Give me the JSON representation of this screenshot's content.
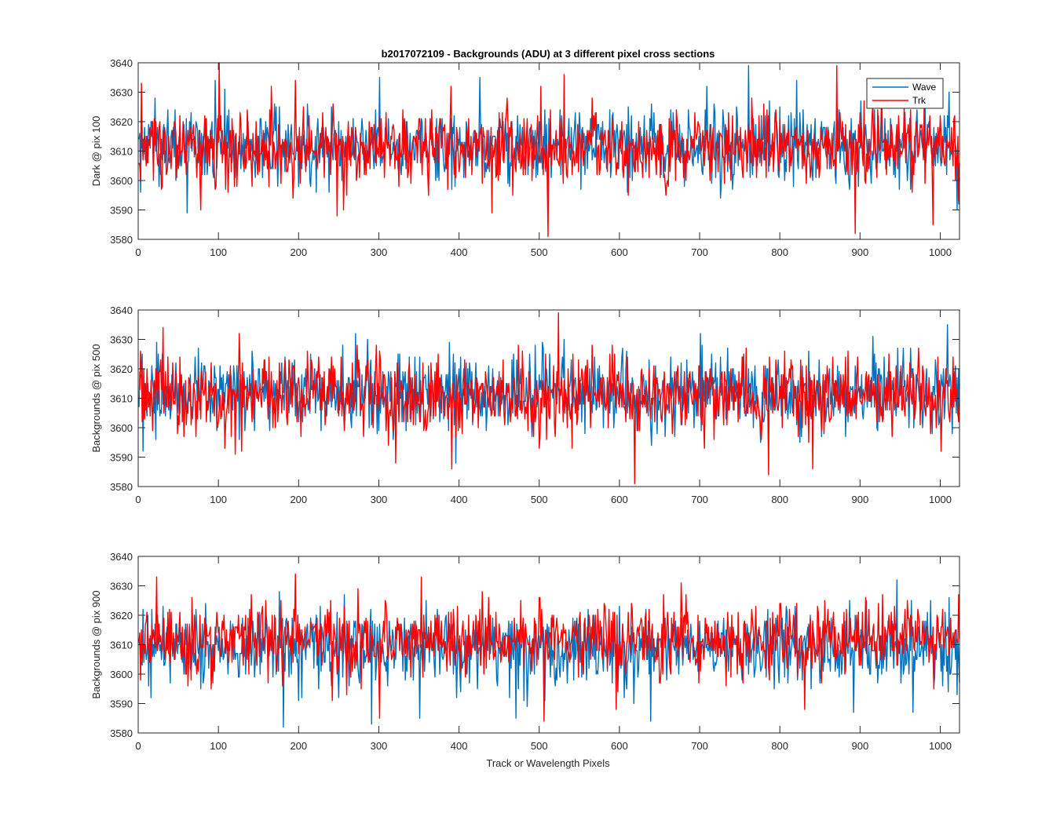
{
  "figure": {
    "title": "b2017072109 - Backgrounds (ADU) at 3 different pixel cross sections",
    "xlabel": "Track or Wavelength Pixels"
  },
  "legend": {
    "position": "top-right of first panel",
    "entries": [
      {
        "name": "Wave",
        "color": "#0072BD"
      },
      {
        "name": "Trk",
        "color": "#FF0000"
      }
    ]
  },
  "chart_data": [
    {
      "type": "line",
      "ylabel": "Dark @ pix 100",
      "xlim": [
        0,
        1024
      ],
      "ylim": [
        3580,
        3640
      ],
      "xticks": [
        0,
        100,
        200,
        300,
        400,
        500,
        600,
        700,
        800,
        900,
        1000
      ],
      "yticks": [
        3580,
        3590,
        3600,
        3610,
        3620,
        3630,
        3640
      ],
      "grid": false,
      "series": [
        {
          "name": "Wave",
          "color": "#0072BD",
          "n_points": 1024,
          "mean": 3612,
          "approx_range": [
            3589,
            3639
          ],
          "notable_points": [
            [
              60,
              3589
            ],
            [
              95,
              3634
            ],
            [
              300,
              3635
            ],
            [
              425,
              3635
            ],
            [
              510,
              3590
            ],
            [
              680,
              3598
            ],
            [
              760,
              3639
            ],
            [
              820,
              3634
            ],
            [
              980,
              3628
            ],
            [
              1010,
              3630
            ],
            [
              1020,
              3590
            ]
          ]
        },
        {
          "name": "Trk",
          "color": "#FF0000",
          "n_points": 1024,
          "mean": 3611,
          "approx_range": [
            3581,
            3640
          ],
          "notable_points": [
            [
              3,
              3633
            ],
            [
              77,
              3590
            ],
            [
              100,
              3640
            ],
            [
              165,
              3632
            ],
            [
              195,
              3634
            ],
            [
              255,
              3590
            ],
            [
              440,
              3589
            ],
            [
              490,
              3600
            ],
            [
              510,
              3581
            ],
            [
              530,
              3636
            ],
            [
              870,
              3639
            ],
            [
              893,
              3582
            ],
            [
              990,
              3585
            ],
            [
              1022,
              3593
            ]
          ]
        }
      ]
    },
    {
      "type": "line",
      "ylabel": "Backgrounds @ pix 500",
      "xlim": [
        0,
        1024
      ],
      "ylim": [
        3580,
        3640
      ],
      "xticks": [
        0,
        100,
        200,
        300,
        400,
        500,
        600,
        700,
        800,
        900,
        1000
      ],
      "yticks": [
        3580,
        3590,
        3600,
        3610,
        3620,
        3630,
        3640
      ],
      "grid": false,
      "series": [
        {
          "name": "Wave",
          "color": "#0072BD",
          "n_points": 1024,
          "mean": 3612,
          "approx_range": [
            3588,
            3635
          ],
          "notable_points": [
            [
              5,
              3592
            ],
            [
              270,
              3632
            ],
            [
              395,
              3588
            ],
            [
              530,
              3630
            ],
            [
              700,
              3632
            ],
            [
              1008,
              3635
            ]
          ]
        },
        {
          "name": "Trk",
          "color": "#FF0000",
          "n_points": 1024,
          "mean": 3611,
          "approx_range": [
            3581,
            3639
          ],
          "notable_points": [
            [
              30,
              3634
            ],
            [
              120,
              3591
            ],
            [
              320,
              3588
            ],
            [
              390,
              3586
            ],
            [
              523,
              3639
            ],
            [
              618,
              3581
            ],
            [
              785,
              3584
            ],
            [
              840,
              3586
            ],
            [
              1000,
              3592
            ]
          ]
        }
      ]
    },
    {
      "type": "line",
      "ylabel": "Backgrounds @ pix 900",
      "xlim": [
        0,
        1024
      ],
      "ylim": [
        3580,
        3640
      ],
      "xticks": [
        0,
        100,
        200,
        300,
        400,
        500,
        600,
        700,
        800,
        900,
        1000
      ],
      "yticks": [
        3580,
        3590,
        3600,
        3610,
        3620,
        3630,
        3640
      ],
      "grid": false,
      "series": [
        {
          "name": "Wave",
          "color": "#0072BD",
          "n_points": 1024,
          "mean": 3609,
          "approx_range": [
            3582,
            3632
          ],
          "notable_points": [
            [
              180,
              3582
            ],
            [
              290,
              3583
            ],
            [
              350,
              3585
            ],
            [
              470,
              3585
            ],
            [
              638,
              3584
            ],
            [
              945,
              3632
            ],
            [
              965,
              3587
            ]
          ]
        },
        {
          "name": "Trk",
          "color": "#FF0000",
          "n_points": 1024,
          "mean": 3612,
          "approx_range": [
            3584,
            3634
          ],
          "notable_points": [
            [
              22,
              3633
            ],
            [
              195,
              3634
            ],
            [
              300,
              3585
            ],
            [
              505,
              3584
            ],
            [
              595,
              3588
            ],
            [
              830,
              3588
            ]
          ]
        }
      ]
    }
  ]
}
